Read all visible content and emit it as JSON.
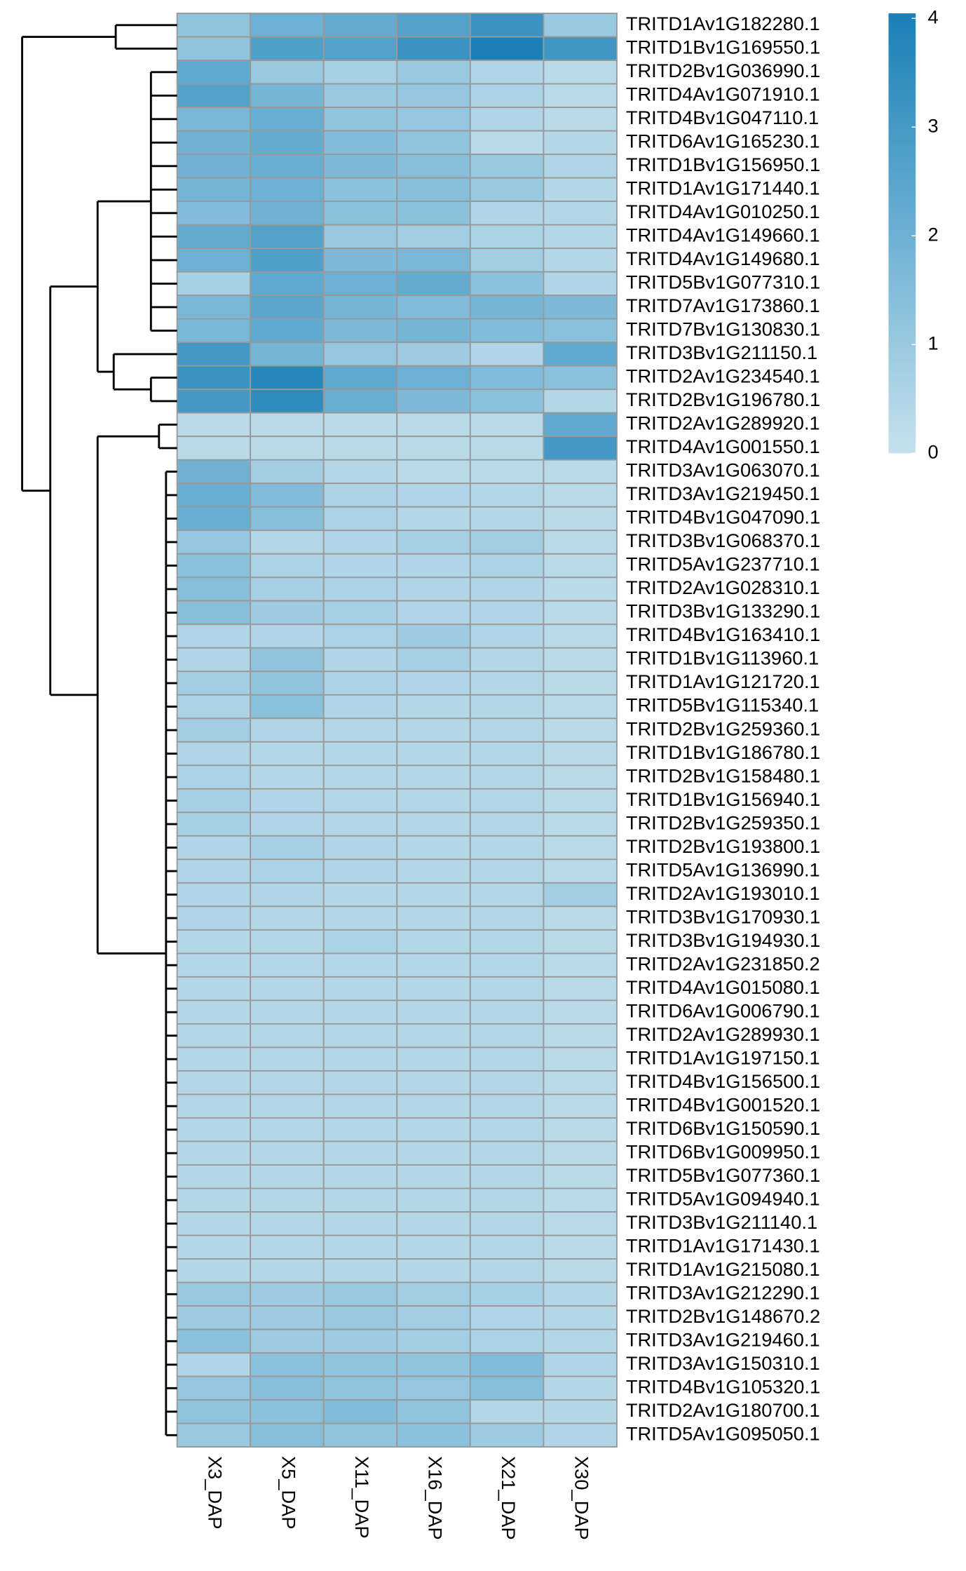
{
  "chart_data": {
    "type": "heatmap",
    "categories": [
      "X3_DAP",
      "X5_DAP",
      "X11_DAP",
      "X16_DAP",
      "X21_DAP",
      "X30_DAP"
    ],
    "rows": [
      "TRITD1Av1G182280.1",
      "TRITD1Bv1G169550.1",
      "TRITD2Bv1G036990.1",
      "TRITD4Av1G071910.1",
      "TRITD4Bv1G047110.1",
      "TRITD6Av1G165230.1",
      "TRITD1Bv1G156950.1",
      "TRITD1Av1G171440.1",
      "TRITD4Av1G010250.1",
      "TRITD4Av1G149660.1",
      "TRITD4Av1G149680.1",
      "TRITD5Bv1G077310.1",
      "TRITD7Av1G173860.1",
      "TRITD7Bv1G130830.1",
      "TRITD3Bv1G211150.1",
      "TRITD2Av1G234540.1",
      "TRITD2Bv1G196780.1",
      "TRITD2Av1G289920.1",
      "TRITD4Av1G001550.1",
      "TRITD3Av1G063070.1",
      "TRITD3Av1G219450.1",
      "TRITD4Bv1G047090.1",
      "TRITD3Bv1G068370.1",
      "TRITD5Av1G237710.1",
      "TRITD2Av1G028310.1",
      "TRITD3Bv1G133290.1",
      "TRITD4Bv1G163410.1",
      "TRITD1Bv1G113960.1",
      "TRITD1Av1G121720.1",
      "TRITD5Bv1G115340.1",
      "TRITD2Bv1G259360.1",
      "TRITD1Bv1G186780.1",
      "TRITD2Bv1G158480.1",
      "TRITD1Bv1G156940.1",
      "TRITD2Bv1G259350.1",
      "TRITD2Bv1G193800.1",
      "TRITD5Av1G136990.1",
      "TRITD2Av1G193010.1",
      "TRITD3Bv1G170930.1",
      "TRITD3Bv1G194930.1",
      "TRITD2Av1G231850.2",
      "TRITD4Av1G015080.1",
      "TRITD6Av1G006790.1",
      "TRITD2Av1G289930.1",
      "TRITD1Av1G197150.1",
      "TRITD4Bv1G156500.1",
      "TRITD4Bv1G001520.1",
      "TRITD6Bv1G150590.1",
      "TRITD6Bv1G009950.1",
      "TRITD5Bv1G077360.1",
      "TRITD5Av1G094940.1",
      "TRITD3Bv1G211140.1",
      "TRITD1Av1G171430.1",
      "TRITD1Av1G215080.1",
      "TRITD3Av1G212290.1",
      "TRITD2Bv1G148670.2",
      "TRITD3Av1G219460.1",
      "TRITD3Av1G150310.1",
      "TRITD4Bv1G105320.1",
      "TRITD2Av1G180700.1",
      "TRITD5Av1G095050.1"
    ],
    "values": [
      [
        1.2,
        2.0,
        2.2,
        2.6,
        3.2,
        1.0
      ],
      [
        1.2,
        2.7,
        2.6,
        3.2,
        4.0,
        3.1
      ],
      [
        2.3,
        1.0,
        0.7,
        1.0,
        0.5,
        0.3
      ],
      [
        2.6,
        1.8,
        1.0,
        1.1,
        0.6,
        0.3
      ],
      [
        1.7,
        2.1,
        1.2,
        1.1,
        0.5,
        0.3
      ],
      [
        1.9,
        2.2,
        1.5,
        1.2,
        0.3,
        0.4
      ],
      [
        1.9,
        2.1,
        1.6,
        1.4,
        1.0,
        0.5
      ],
      [
        1.8,
        2.0,
        1.3,
        1.4,
        1.0,
        0.4
      ],
      [
        1.5,
        1.9,
        1.3,
        1.3,
        0.5,
        0.4
      ],
      [
        2.2,
        2.6,
        1.0,
        0.8,
        0.6,
        0.4
      ],
      [
        2.0,
        2.7,
        1.6,
        1.7,
        0.8,
        0.4
      ],
      [
        0.7,
        2.3,
        2.0,
        2.2,
        1.3,
        0.5
      ],
      [
        1.7,
        2.4,
        1.8,
        1.5,
        1.8,
        1.6
      ],
      [
        1.7,
        2.3,
        1.6,
        1.8,
        1.5,
        1.3
      ],
      [
        3.0,
        1.8,
        1.1,
        0.9,
        0.5,
        2.3
      ],
      [
        3.2,
        3.7,
        2.3,
        2.0,
        1.5,
        1.3
      ],
      [
        3.0,
        3.5,
        2.1,
        1.6,
        1.3,
        0.4
      ],
      [
        0.3,
        0.3,
        0.3,
        0.3,
        0.3,
        2.3
      ],
      [
        0.3,
        0.3,
        0.3,
        0.3,
        0.3,
        3.0
      ],
      [
        1.9,
        0.8,
        0.4,
        0.3,
        0.3,
        0.3
      ],
      [
        2.1,
        1.5,
        0.6,
        0.5,
        0.4,
        0.3
      ],
      [
        2.1,
        1.4,
        0.6,
        0.4,
        0.4,
        0.3
      ],
      [
        1.1,
        0.4,
        0.5,
        0.7,
        0.8,
        0.3
      ],
      [
        1.3,
        0.6,
        0.5,
        0.5,
        0.6,
        0.3
      ],
      [
        1.4,
        0.7,
        0.6,
        0.5,
        0.5,
        0.3
      ],
      [
        1.4,
        0.9,
        0.7,
        0.5,
        0.5,
        0.3
      ],
      [
        0.5,
        0.5,
        0.6,
        0.9,
        0.5,
        0.3
      ],
      [
        0.5,
        1.2,
        0.5,
        0.7,
        0.4,
        0.3
      ],
      [
        0.8,
        1.2,
        0.6,
        0.5,
        0.4,
        0.3
      ],
      [
        0.6,
        1.3,
        0.5,
        0.4,
        0.4,
        0.3
      ],
      [
        0.8,
        0.5,
        0.4,
        0.4,
        0.4,
        0.3
      ],
      [
        0.5,
        0.4,
        0.4,
        0.4,
        0.4,
        0.3
      ],
      [
        0.6,
        0.4,
        0.4,
        0.4,
        0.4,
        0.3
      ],
      [
        0.7,
        0.5,
        0.4,
        0.4,
        0.4,
        0.3
      ],
      [
        0.7,
        0.5,
        0.4,
        0.4,
        0.4,
        0.3
      ],
      [
        0.5,
        0.7,
        0.5,
        0.4,
        0.4,
        0.3
      ],
      [
        0.5,
        0.6,
        0.5,
        0.4,
        0.4,
        0.3
      ],
      [
        0.5,
        0.5,
        0.4,
        0.4,
        0.4,
        0.8
      ],
      [
        0.5,
        0.4,
        0.4,
        0.4,
        0.4,
        0.3
      ],
      [
        0.4,
        0.4,
        0.6,
        0.4,
        0.4,
        0.3
      ],
      [
        0.4,
        0.4,
        0.4,
        0.4,
        0.4,
        0.3
      ],
      [
        0.4,
        0.4,
        0.4,
        0.4,
        0.4,
        0.3
      ],
      [
        0.4,
        0.4,
        0.4,
        0.4,
        0.4,
        0.3
      ],
      [
        0.4,
        0.4,
        0.4,
        0.4,
        0.4,
        0.3
      ],
      [
        0.4,
        0.4,
        0.4,
        0.4,
        0.4,
        0.3
      ],
      [
        0.4,
        0.4,
        0.4,
        0.4,
        0.4,
        0.3
      ],
      [
        0.4,
        0.4,
        0.4,
        0.4,
        0.4,
        0.3
      ],
      [
        0.4,
        0.4,
        0.4,
        0.4,
        0.4,
        0.3
      ],
      [
        0.4,
        0.4,
        0.4,
        0.4,
        0.4,
        0.3
      ],
      [
        0.4,
        0.4,
        0.4,
        0.4,
        0.4,
        0.3
      ],
      [
        0.4,
        0.4,
        0.4,
        0.4,
        0.4,
        0.3
      ],
      [
        0.4,
        0.4,
        0.4,
        0.4,
        0.4,
        0.3
      ],
      [
        0.4,
        0.4,
        0.4,
        0.4,
        0.4,
        0.3
      ],
      [
        0.4,
        0.4,
        0.4,
        0.4,
        0.4,
        0.3
      ],
      [
        1.0,
        0.9,
        1.0,
        0.8,
        0.7,
        0.4
      ],
      [
        0.9,
        0.9,
        1.0,
        0.8,
        0.5,
        0.4
      ],
      [
        1.3,
        0.9,
        0.9,
        0.8,
        0.6,
        0.4
      ],
      [
        0.5,
        1.3,
        1.2,
        1.2,
        1.5,
        0.5
      ],
      [
        1.1,
        1.4,
        1.2,
        1.1,
        1.4,
        0.4
      ],
      [
        1.2,
        1.3,
        1.5,
        1.2,
        0.4,
        0.4
      ],
      [
        1.0,
        1.4,
        1.2,
        1.3,
        0.9,
        0.5
      ]
    ],
    "colors": [
      "#c6e1ed",
      "#6cb0d3",
      "#1b80b6"
    ],
    "clim": [
      0,
      4
    ],
    "cticks": [
      0,
      1,
      2,
      3,
      4
    ]
  }
}
